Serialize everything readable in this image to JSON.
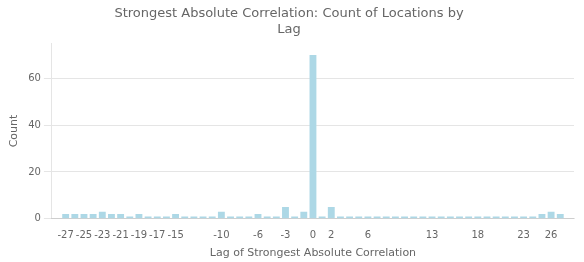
{
  "chart_data": {
    "type": "bar",
    "title": "Strongest Absolute Correlation: Count of Locations by\nLag",
    "xlabel": "Lag of Strongest Absolute Correlation",
    "ylabel": "Count",
    "x": [
      -27,
      -26,
      -25,
      -24,
      -23,
      -22,
      -21,
      -20,
      -19,
      -18,
      -17,
      -16,
      -15,
      -14,
      -13,
      -12,
      -11,
      -10,
      -9,
      -8,
      -7,
      -6,
      -5,
      -4,
      -3,
      -2,
      -1,
      0,
      1,
      2,
      3,
      4,
      5,
      6,
      7,
      8,
      9,
      10,
      11,
      12,
      13,
      14,
      15,
      16,
      17,
      18,
      19,
      20,
      21,
      22,
      23,
      24,
      25,
      26,
      27
    ],
    "values": [
      2,
      2,
      2,
      2,
      3,
      2,
      2,
      1,
      2,
      1,
      1,
      1,
      2,
      1,
      1,
      1,
      1,
      3,
      1,
      1,
      1,
      2,
      1,
      1,
      5,
      1,
      3,
      70,
      1,
      5,
      1,
      1,
      1,
      1,
      1,
      1,
      1,
      1,
      1,
      1,
      1,
      1,
      1,
      1,
      1,
      1,
      1,
      1,
      1,
      1,
      1,
      1,
      2,
      3,
      2
    ],
    "color": "#add8e6",
    "xlim": [
      -28.5,
      28.5
    ],
    "xticks": [
      -27,
      -25,
      -23,
      -21,
      -19,
      -17,
      -15,
      -10,
      -6,
      -3,
      0,
      2,
      6,
      13,
      18,
      23,
      26
    ],
    "ylim": [
      0,
      75
    ],
    "yticks": [
      0,
      20,
      40,
      60
    ],
    "grid": "y"
  }
}
